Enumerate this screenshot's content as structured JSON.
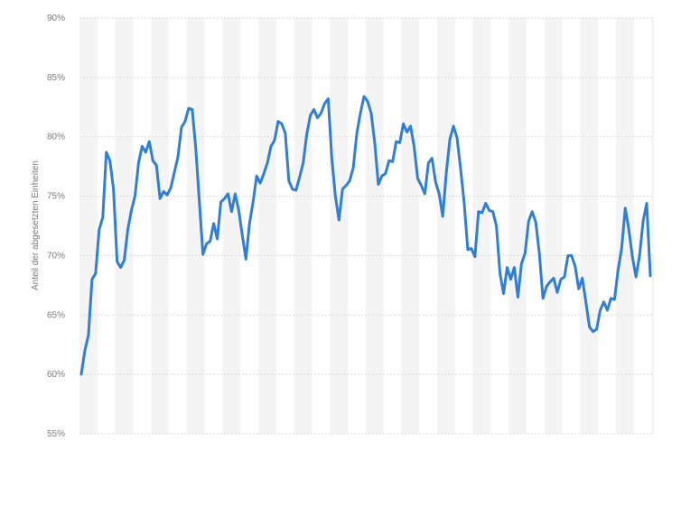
{
  "chart_data": {
    "type": "line",
    "title": "",
    "xlabel": "",
    "ylabel": "Anteil der abgesetzten Einheiten",
    "ylim": [
      55,
      90
    ],
    "ytick_values": [
      55,
      60,
      65,
      70,
      75,
      80,
      85,
      90
    ],
    "ytick_labels": [
      "55%",
      "60%",
      "65%",
      "70%",
      "75%",
      "80%",
      "85%",
      "90%"
    ],
    "grid": true,
    "legend": "none",
    "line_color": "#2f7ed8",
    "series": [
      {
        "values": [
          60.0,
          62.0,
          63.3,
          68.0,
          68.5,
          72.2,
          73.2,
          78.7,
          78.0,
          75.6,
          69.5,
          69.0,
          69.6,
          72.2,
          73.8,
          75.0,
          77.8,
          79.2,
          78.7,
          79.6,
          78.0,
          77.6,
          74.8,
          75.4,
          75.1,
          75.7,
          77.0,
          78.3,
          80.8,
          81.3,
          82.4,
          82.3,
          79.0,
          74.5,
          70.1,
          71.0,
          71.2,
          72.7,
          71.4,
          74.5,
          74.8,
          75.2,
          73.7,
          75.2,
          73.8,
          71.7,
          69.7,
          72.7,
          74.5,
          76.7,
          76.1,
          76.9,
          77.8,
          79.2,
          79.7,
          81.3,
          81.1,
          80.3,
          76.3,
          75.6,
          75.5,
          76.6,
          77.8,
          80.2,
          81.8,
          82.3,
          81.6,
          82.0,
          82.8,
          83.2,
          78.2,
          75.0,
          73.0,
          75.6,
          75.9,
          76.3,
          77.4,
          80.3,
          82.0,
          83.4,
          83.0,
          82.0,
          79.5,
          76.0,
          76.7,
          76.9,
          78.0,
          77.9,
          79.6,
          79.5,
          81.1,
          80.4,
          80.9,
          79.2,
          76.5,
          75.9,
          75.2,
          77.8,
          78.2,
          76.2,
          75.2,
          73.3,
          77.0,
          79.8,
          80.9,
          79.9,
          77.3,
          74.4,
          70.5,
          70.6,
          69.9,
          73.7,
          73.6,
          74.4,
          73.8,
          73.7,
          72.5,
          68.5,
          66.8,
          69.0,
          68.0,
          69.0,
          66.5,
          69.3,
          70.2,
          72.9,
          73.7,
          72.8,
          70.2,
          66.4,
          67.4,
          67.8,
          68.1,
          66.9,
          68.0,
          68.2,
          70.0,
          70.0,
          69.1,
          67.2,
          68.1,
          66.1,
          64.0,
          63.6,
          63.8,
          65.4,
          66.1,
          65.4,
          66.4,
          66.3,
          68.8,
          70.6,
          74.0,
          72.2,
          69.9,
          68.2,
          70.0,
          72.9,
          74.4,
          68.3
        ]
      }
    ]
  }
}
